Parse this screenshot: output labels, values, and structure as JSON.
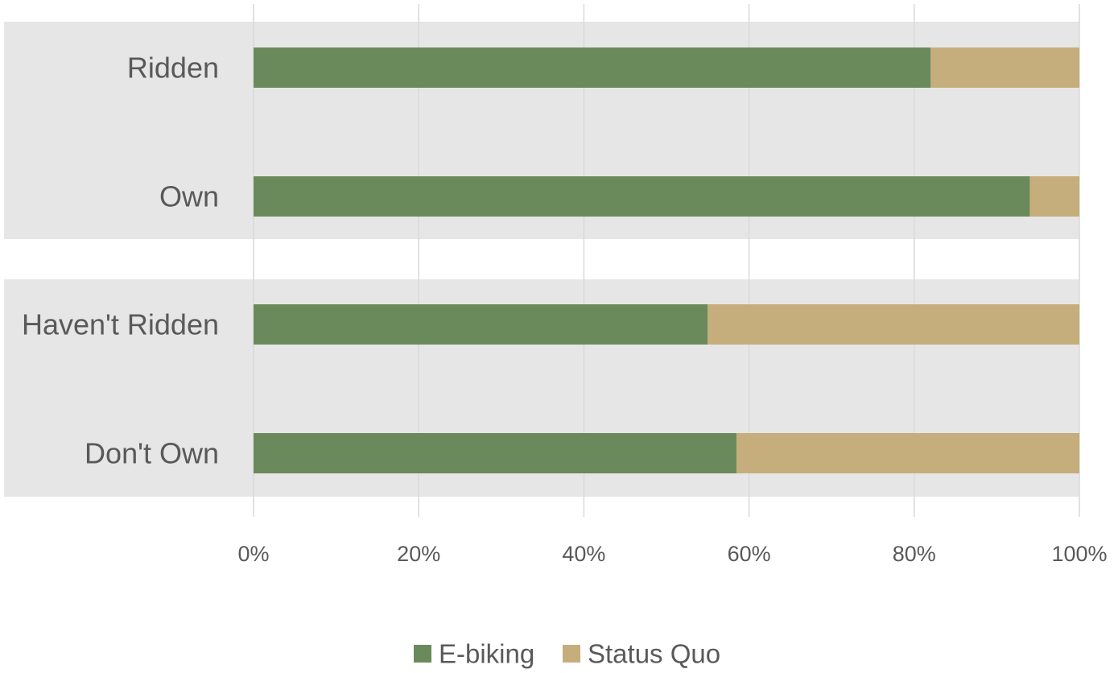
{
  "chart_data": {
    "type": "bar",
    "orientation": "horizontal",
    "stacked": "percent",
    "title": "",
    "xlabel": "",
    "ylabel": "",
    "categories": [
      "Ridden",
      "Own",
      "Haven't Ridden",
      "Don't Own"
    ],
    "series": [
      {
        "name": "E-biking",
        "values": [
          82,
          94,
          55,
          58.5
        ],
        "color": "#6b8a5b"
      },
      {
        "name": "Status Quo",
        "values": [
          18,
          6,
          45,
          41.5
        ],
        "color": "#c5ae7b"
      }
    ],
    "xlim": [
      0,
      100
    ],
    "xticks": [
      "0%",
      "20%",
      "40%",
      "60%",
      "80%",
      "100%"
    ],
    "category_groups": [
      {
        "categories": [
          "Ridden",
          "Own"
        ],
        "shading": "#e6e6e6"
      },
      {
        "categories": [
          "Haven't Ridden",
          "Don't Own"
        ],
        "shading": "#e6e6e6"
      }
    ],
    "grid": true,
    "gridline_color": "#d9d9d9",
    "legend": "bottom-center"
  }
}
